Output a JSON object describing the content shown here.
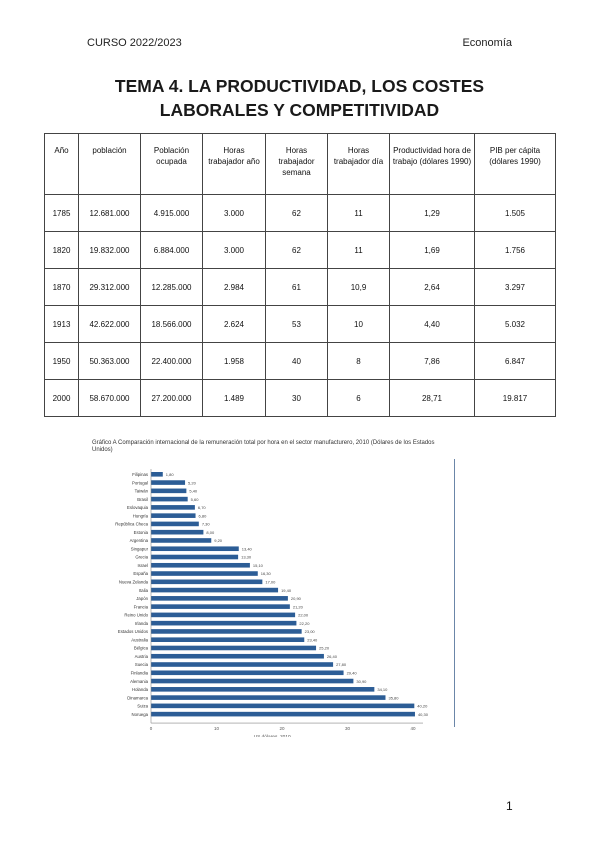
{
  "header": {
    "course": "CURSO 2022/2023",
    "subject": "Economía"
  },
  "title": {
    "line1": "TEMA 4. LA PRODUCTIVIDAD, LOS COSTES",
    "line2": "LABORALES Y COMPETITIVIDAD"
  },
  "table": {
    "headers": [
      "Año",
      "población",
      "Población ocupada",
      "Horas trabajador año",
      "Horas trabajador semana",
      "Horas trabajador día",
      "Productividad hora de trabajo (dólares 1990)",
      "PIB per cápita (dólares 1990)"
    ],
    "rows": [
      [
        "1785",
        "12.681.000",
        "4.915.000",
        "3.000",
        "62",
        "11",
        "1,29",
        "1.505"
      ],
      [
        "1820",
        "19.832.000",
        "6.884.000",
        "3.000",
        "62",
        "11",
        "1,69",
        "1.756"
      ],
      [
        "1870",
        "29.312.000",
        "12.285.000",
        "2.984",
        "61",
        "10,9",
        "2,64",
        "3.297"
      ],
      [
        "1913",
        "42.622.000",
        "18.566.000",
        "2.624",
        "53",
        "10",
        "4,40",
        "5.032"
      ],
      [
        "1950",
        "50.363.000",
        "22.400.000",
        "1.958",
        "40",
        "8",
        "7,86",
        "6.847"
      ],
      [
        "2000",
        "58.670.000",
        "27.200.000",
        "1.489",
        "30",
        "6",
        "28,71",
        "19.817"
      ]
    ]
  },
  "chart_data": {
    "type": "bar",
    "orientation": "horizontal",
    "title": "Gráfico A   Comparación internacional de la remuneración total por hora en el sector manufacturero, 2010 (Dólares de los Estados Unidos)",
    "xlabel": "US dólares, 2010",
    "xlim": [
      0,
      40
    ],
    "xticks": [
      "0",
      "10",
      "20",
      "30",
      "40"
    ],
    "bar_color": "#2c5d96",
    "categories": [
      "Filipinas",
      "Portugal",
      "Taiwán",
      "Brasil",
      "Eslovaquia",
      "Hungría",
      "República Checa",
      "Estonia",
      "Argentina",
      "Singapur",
      "Grecia",
      "Israel",
      "España",
      "Nueva Zelanda",
      "Italia",
      "Japón",
      "Francia",
      "Reino Unido",
      "Irlanda",
      "Estados Unidos",
      "Australia",
      "Bélgica",
      "Austria",
      "Suecia",
      "Finlandia",
      "Alemania",
      "Holanda",
      "Dinamarca",
      "Suiza",
      "Noruega"
    ],
    "values": [
      1.8,
      5.2,
      5.4,
      5.6,
      6.7,
      6.8,
      7.3,
      8.0,
      9.2,
      13.4,
      13.3,
      15.1,
      16.3,
      17.0,
      19.4,
      20.9,
      21.2,
      22.0,
      22.2,
      23.0,
      23.4,
      25.2,
      26.4,
      27.8,
      29.4,
      30.9,
      34.1,
      35.8,
      40.2,
      40.3
    ],
    "value_labels": [
      "1,80",
      "5,20",
      "5,40",
      "5,60",
      "6,70",
      "6,80",
      "7,30",
      "8,00",
      "9,20",
      "13,40",
      "13,30",
      "15,10",
      "16,30",
      "17,00",
      "19,40",
      "20,90",
      "21,20",
      "22,00",
      "22,20",
      "23,00",
      "23,40",
      "25,20",
      "26,40",
      "27,80",
      "29,40",
      "30,90",
      "34,10",
      "35,80",
      "40,20",
      "40,30"
    ]
  },
  "page_number": "1"
}
